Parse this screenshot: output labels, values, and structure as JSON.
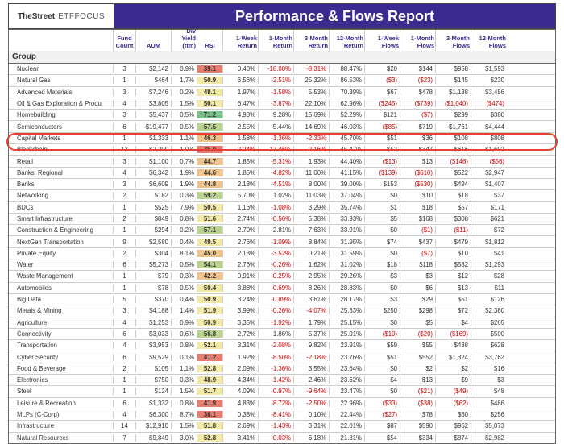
{
  "brand": {
    "main": "TheStreet",
    "sub": "ETFFOCUS"
  },
  "title": "Performance & Flows Report",
  "columns": [
    "",
    "Fund Count",
    "AUM",
    "Div Yield (ttm)",
    "RSI",
    "1-Week Return",
    "1-Month Return",
    "3-Month Return",
    "12-Month Return",
    "1-Week Flows",
    "1-Month Flows",
    "3-Month Flows",
    "12-Month Flows"
  ],
  "group_label": "Group",
  "highlight_row_index": 7,
  "rsi_palette": {
    "low": "#e77d6f",
    "mid": "#f2e9a7",
    "high": "#78c08a"
  },
  "rows": [
    {
      "name": "Nuclear",
      "cnt": 3,
      "aum": "$2,142",
      "dy": "0.9%",
      "rsi": 39.1,
      "r1": "0.40%",
      "r2": "-18.00%",
      "r3": "-8.31%",
      "r4": "88.47%",
      "f1": "$20",
      "f2": "$144",
      "f3": "$958",
      "f4": "$1,593"
    },
    {
      "name": "Natural Gas",
      "cnt": 1,
      "aum": "$464",
      "dy": "1.7%",
      "rsi": 50.9,
      "r1": "6.56%",
      "r2": "-2.51%",
      "r3": "25.32%",
      "r4": "86.53%",
      "f1": "($3)",
      "f2": "($23)",
      "f3": "$145",
      "f4": "$230"
    },
    {
      "name": "Advanced Materials",
      "cnt": 3,
      "aum": "$7,246",
      "dy": "0.2%",
      "rsi": 48.1,
      "r1": "1.97%",
      "r2": "-1.58%",
      "r3": "5.53%",
      "r4": "70.39%",
      "f1": "$67",
      "f2": "$478",
      "f3": "$1,138",
      "f4": "$3,456"
    },
    {
      "name": "Oil & Gas Exploration & Produ",
      "cnt": 4,
      "aum": "$3,805",
      "dy": "1.5%",
      "rsi": 50.1,
      "r1": "6.47%",
      "r2": "-3.87%",
      "r3": "22.10%",
      "r4": "62.96%",
      "f1": "($245)",
      "f2": "($739)",
      "f3": "($1,040)",
      "f4": "($474)"
    },
    {
      "name": "Homebuilding",
      "cnt": 3,
      "aum": "$5,437",
      "dy": "0.5%",
      "rsi": 71.2,
      "r1": "4.98%",
      "r2": "9.28%",
      "r3": "15.69%",
      "r4": "52.29%",
      "f1": "$121",
      "f2": "($7)",
      "f3": "$299",
      "f4": "$380"
    },
    {
      "name": "Semiconductors",
      "cnt": 6,
      "aum": "$19,477",
      "dy": "0.5%",
      "rsi": 57.5,
      "r1": "2.55%",
      "r2": "5.44%",
      "r3": "14.69%",
      "r4": "46.03%",
      "f1": "($85)",
      "f2": "$719",
      "f3": "$1,761",
      "f4": "$4,444"
    },
    {
      "name": "Capital Markets",
      "cnt": 1,
      "aum": "$1,333",
      "dy": "1.1%",
      "rsi": 46.3,
      "r1": "1.58%",
      "r2": "-1.36%",
      "r3": "-2.33%",
      "r4": "45.70%",
      "f1": "$51",
      "f2": "$36",
      "f3": "$108",
      "f4": "$808"
    },
    {
      "name": "Blockchain",
      "cnt": 12,
      "aum": "$2,290",
      "dy": "1.0%",
      "rsi": 35.0,
      "r1": "-2.24%",
      "r2": "-17.46%",
      "r3": "-2.16%",
      "r4": "45.47%",
      "f1": "$52",
      "f2": "$347",
      "f3": "$616",
      "f4": "$1,692"
    },
    {
      "name": "Retail",
      "cnt": 3,
      "aum": "$1,100",
      "dy": "0.7%",
      "rsi": 44.7,
      "r1": "1.85%",
      "r2": "-5.31%",
      "r3": "1.93%",
      "r4": "44.40%",
      "f1": "($13)",
      "f2": "$13",
      "f3": "($146)",
      "f4": "($56)"
    },
    {
      "name": "Banks: Regional",
      "cnt": 4,
      "aum": "$6,342",
      "dy": "1.9%",
      "rsi": 44.6,
      "r1": "1.85%",
      "r2": "-4.82%",
      "r3": "11.00%",
      "r4": "41.15%",
      "f1": "($139)",
      "f2": "($610)",
      "f3": "$522",
      "f4": "$2,947"
    },
    {
      "name": "Banks",
      "cnt": 3,
      "aum": "$6,609",
      "dy": "1.9%",
      "rsi": 44.8,
      "r1": "2.18%",
      "r2": "-4.51%",
      "r3": "8.00%",
      "r4": "39.00%",
      "f1": "$153",
      "f2": "($530)",
      "f3": "$494",
      "f4": "$1,407"
    },
    {
      "name": "Networking",
      "cnt": 2,
      "aum": "$182",
      "dy": "0.3%",
      "rsi": 59.2,
      "r1": "5.70%",
      "r2": "1.02%",
      "r3": "11.03%",
      "r4": "37.04%",
      "f1": "$0",
      "f2": "$10",
      "f3": "$18",
      "f4": "$37"
    },
    {
      "name": "BDCs",
      "cnt": 1,
      "aum": "$525",
      "dy": "7.9%",
      "rsi": 50.5,
      "r1": "1.16%",
      "r2": "-1.08%",
      "r3": "3.29%",
      "r4": "35.74%",
      "f1": "$1",
      "f2": "$18",
      "f3": "$57",
      "f4": "$171"
    },
    {
      "name": "Smart Infrastructure",
      "cnt": 2,
      "aum": "$849",
      "dy": "0.8%",
      "rsi": 51.6,
      "r1": "2.74%",
      "r2": "-0.56%",
      "r3": "5.38%",
      "r4": "33.93%",
      "f1": "$5",
      "f2": "$168",
      "f3": "$308",
      "f4": "$621"
    },
    {
      "name": "Construction & Engineering",
      "cnt": 1,
      "aum": "$294",
      "dy": "0.2%",
      "rsi": 57.1,
      "r1": "2.70%",
      "r2": "2.81%",
      "r3": "7.63%",
      "r4": "33.91%",
      "f1": "$0",
      "f2": "($1)",
      "f3": "($11)",
      "f4": "$72"
    },
    {
      "name": "NextGen Transportation",
      "cnt": 9,
      "aum": "$2,580",
      "dy": "0.4%",
      "rsi": 49.5,
      "r1": "2.76%",
      "r2": "-1.09%",
      "r3": "8.84%",
      "r4": "31.95%",
      "f1": "$74",
      "f2": "$437",
      "f3": "$479",
      "f4": "$1,812"
    },
    {
      "name": "Private Equity",
      "cnt": 2,
      "aum": "$304",
      "dy": "8.1%",
      "rsi": 45.0,
      "r1": "2.13%",
      "r2": "-3.52%",
      "r3": "0.21%",
      "r4": "31.59%",
      "f1": "$0",
      "f2": "($7)",
      "f3": "$10",
      "f4": "$41"
    },
    {
      "name": "Water",
      "cnt": 6,
      "aum": "$5,273",
      "dy": "0.5%",
      "rsi": 54.1,
      "r1": "2.76%",
      "r2": "-0.26%",
      "r3": "1.62%",
      "r4": "31.02%",
      "f1": "$18",
      "f2": "$118",
      "f3": "$582",
      "f4": "$1,293"
    },
    {
      "name": "Waste Management",
      "cnt": 1,
      "aum": "$79",
      "dy": "0.3%",
      "rsi": 42.2,
      "r1": "0.91%",
      "r2": "-0.25%",
      "r3": "2.95%",
      "r4": "29.26%",
      "f1": "$3",
      "f2": "$3",
      "f3": "$12",
      "f4": "$28"
    },
    {
      "name": "Automobiles",
      "cnt": 1,
      "aum": "$78",
      "dy": "0.5%",
      "rsi": 50.4,
      "r1": "3.88%",
      "r2": "-0.69%",
      "r3": "8.26%",
      "r4": "28.83%",
      "f1": "$0",
      "f2": "$6",
      "f3": "$13",
      "f4": "$11"
    },
    {
      "name": "Big Data",
      "cnt": 5,
      "aum": "$370",
      "dy": "0.4%",
      "rsi": 50.9,
      "r1": "3.24%",
      "r2": "-0.89%",
      "r3": "3.61%",
      "r4": "28.17%",
      "f1": "$3",
      "f2": "$29",
      "f3": "$51",
      "f4": "$126"
    },
    {
      "name": "Metals & Mining",
      "cnt": 3,
      "aum": "$4,188",
      "dy": "1.4%",
      "rsi": 51.9,
      "r1": "3.99%",
      "r2": "-0.26%",
      "r3": "-4.07%",
      "r4": "25.83%",
      "f1": "$250",
      "f2": "$298",
      "f3": "$72",
      "f4": "$2,380"
    },
    {
      "name": "Agriculture",
      "cnt": 4,
      "aum": "$1,253",
      "dy": "0.9%",
      "rsi": 50.9,
      "r1": "3.35%",
      "r2": "-1.92%",
      "r3": "1.79%",
      "r4": "25.15%",
      "f1": "$0",
      "f2": "$5",
      "f3": "$4",
      "f4": "$265"
    },
    {
      "name": "Connectivity",
      "cnt": 6,
      "aum": "$3,033",
      "dy": "0.6%",
      "rsi": 56.8,
      "r1": "2.72%",
      "r2": "1.86%",
      "r3": "5.37%",
      "r4": "25.01%",
      "f1": "($10)",
      "f2": "($20)",
      "f3": "($169)",
      "f4": "$500"
    },
    {
      "name": "Transportation",
      "cnt": 4,
      "aum": "$3,953",
      "dy": "0.8%",
      "rsi": 52.1,
      "r1": "3.31%",
      "r2": "-2.08%",
      "r3": "9.82%",
      "r4": "23.91%",
      "f1": "$59",
      "f2": "$55",
      "f3": "$438",
      "f4": "$628"
    },
    {
      "name": "Cyber Security",
      "cnt": 6,
      "aum": "$9,529",
      "dy": "0.1%",
      "rsi": 41.2,
      "r1": "1.92%",
      "r2": "-8.50%",
      "r3": "-2.18%",
      "r4": "23.76%",
      "f1": "$51",
      "f2": "$552",
      "f3": "$1,324",
      "f4": "$3,762"
    },
    {
      "name": "Food & Beverage",
      "cnt": 2,
      "aum": "$105",
      "dy": "1.1%",
      "rsi": 52.8,
      "r1": "2.09%",
      "r2": "-1.36%",
      "r3": "3.55%",
      "r4": "23.64%",
      "f1": "$0",
      "f2": "$2",
      "f3": "$2",
      "f4": "$16"
    },
    {
      "name": "Electronics",
      "cnt": 1,
      "aum": "$750",
      "dy": "0.3%",
      "rsi": 48.9,
      "r1": "4.34%",
      "r2": "-1.42%",
      "r3": "2.46%",
      "r4": "23.62%",
      "f1": "$4",
      "f2": "$13",
      "f3": "$9",
      "f4": "$3"
    },
    {
      "name": "Steel",
      "cnt": 1,
      "aum": "$124",
      "dy": "1.5%",
      "rsi": 51.7,
      "r1": "4.09%",
      "r2": "-0.97%",
      "r3": "-9.64%",
      "r4": "23.47%",
      "f1": "$0",
      "f2": "($21)",
      "f3": "($49)",
      "f4": "$48"
    },
    {
      "name": "Leisure & Recreation",
      "cnt": 6,
      "aum": "$1,332",
      "dy": "0.8%",
      "rsi": 41.9,
      "r1": "4.83%",
      "r2": "-8.72%",
      "r3": "-2.50%",
      "r4": "22.96%",
      "f1": "($33)",
      "f2": "($38)",
      "f3": "($62)",
      "f4": "$486"
    },
    {
      "name": "MLPs (C-Corp)",
      "cnt": 4,
      "aum": "$6,300",
      "dy": "8.7%",
      "rsi": 36.1,
      "r1": "0.38%",
      "r2": "-8.41%",
      "r3": "0.10%",
      "r4": "22.44%",
      "f1": "($27)",
      "f2": "$78",
      "f3": "$60",
      "f4": "$256"
    },
    {
      "name": "Infrastructure",
      "cnt": 14,
      "aum": "$12,910",
      "dy": "1.5%",
      "rsi": 51.8,
      "r1": "2.69%",
      "r2": "-1.43%",
      "r3": "3.31%",
      "r4": "22.01%",
      "f1": "$87",
      "f2": "$590",
      "f3": "$962",
      "f4": "$5,073"
    },
    {
      "name": "Natural Resources",
      "cnt": 7,
      "aum": "$9,849",
      "dy": "3.0%",
      "rsi": 52.8,
      "r1": "3.41%",
      "r2": "-0.03%",
      "r3": "6.18%",
      "r4": "21.81%",
      "f1": "$54",
      "f2": "$334",
      "f3": "$874",
      "f4": "$2,982"
    }
  ]
}
